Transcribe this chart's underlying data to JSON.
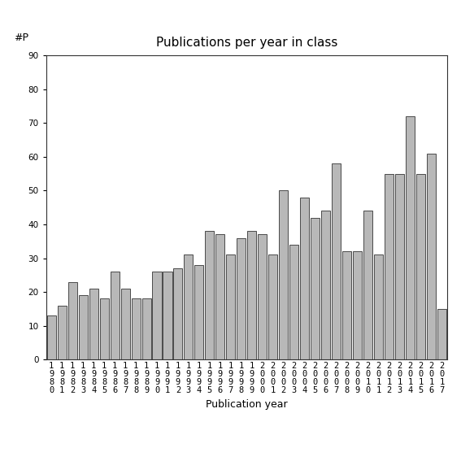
{
  "title": "Publications per year in class",
  "xlabel": "Publication year",
  "ylabel": "#P",
  "years": [
    1980,
    1981,
    1982,
    1983,
    1984,
    1985,
    1986,
    1987,
    1988,
    1989,
    1990,
    1991,
    1992,
    1993,
    1994,
    1995,
    1996,
    1997,
    1998,
    1999,
    2000,
    2001,
    2002,
    2003,
    2004,
    2005,
    2006,
    2007,
    2008,
    2009,
    2010,
    2011,
    2012,
    2013,
    2014,
    2015,
    2016,
    2017
  ],
  "values": [
    13,
    16,
    23,
    19,
    21,
    18,
    26,
    21,
    18,
    18,
    26,
    26,
    27,
    31,
    28,
    38,
    37,
    31,
    36,
    38,
    37,
    31,
    50,
    34,
    48,
    42,
    44,
    58,
    32,
    32,
    44,
    31,
    55,
    55,
    72,
    55,
    61,
    15
  ],
  "bar_color": "#b8b8b8",
  "bar_edge_color": "#333333",
  "ylim": [
    0,
    90
  ],
  "yticks": [
    0,
    10,
    20,
    30,
    40,
    50,
    60,
    70,
    80,
    90
  ],
  "bg_color": "#ffffff",
  "title_fontsize": 11,
  "axis_label_fontsize": 9,
  "tick_fontsize": 7.5
}
